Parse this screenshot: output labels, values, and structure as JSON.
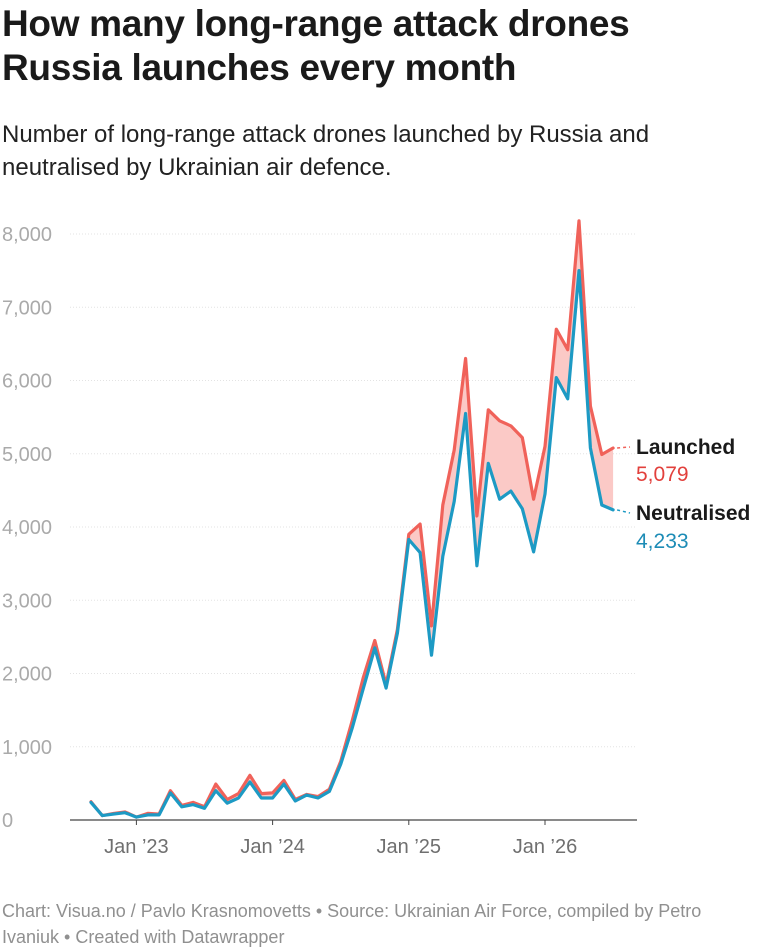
{
  "title": "How many long-range attack drones Russia launches every month",
  "subtitle": "Number of long-range attack drones launched by Russia and neutralised by Ukrainian air defence.",
  "footer": "Chart: Visua.no / Pavlo Krasnomovetts • Source: Ukrainian Air Force, compiled by Petro Ivaniuk • Created with Datawrapper",
  "colors": {
    "launched": "#f0625a",
    "neutralised": "#1d9ac4",
    "gap_fill": "#fbc9c6",
    "launched_value": "#e2403c",
    "neutralised_value": "#1d8cb6"
  },
  "chart_data": {
    "type": "area",
    "x_start": "2022-09",
    "x_tick_labels": [
      "Jan ’23",
      "Jan ’24",
      "Jan ’25",
      "Jan ’26"
    ],
    "x_tick_dates": [
      "2023-01",
      "2024-01",
      "2025-01",
      "2026-01"
    ],
    "ylim": [
      0,
      8000
    ],
    "y_ticks": [
      0,
      1000,
      2000,
      3000,
      4000,
      5000,
      6000,
      7000,
      8000
    ],
    "y_tick_labels": [
      "0",
      "1,000",
      "2,000",
      "3,000",
      "4,000",
      "5,000",
      "6,000",
      "7,000",
      "8,000"
    ],
    "grid": true,
    "series": [
      {
        "name": "Launched",
        "end_label": "5,079",
        "values": [
          250,
          60,
          90,
          110,
          40,
          90,
          80,
          400,
          200,
          240,
          180,
          490,
          280,
          360,
          610,
          360,
          370,
          540,
          280,
          350,
          320,
          420,
          800,
          1350,
          1950,
          2450,
          1850,
          2600,
          3900,
          4040,
          2650,
          4300,
          5050,
          6300,
          4150,
          5600,
          5450,
          5380,
          5220,
          4380,
          5100,
          6700,
          6420,
          8180,
          5650,
          4990,
          5079
        ]
      },
      {
        "name": "Neutralised",
        "end_label": "4,233",
        "values": [
          240,
          60,
          80,
          100,
          40,
          70,
          70,
          370,
          180,
          210,
          160,
          400,
          230,
          300,
          520,
          300,
          300,
          490,
          260,
          340,
          300,
          390,
          760,
          1250,
          1800,
          2350,
          1800,
          2550,
          3830,
          3650,
          2250,
          3600,
          4350,
          5550,
          3470,
          4870,
          4380,
          4490,
          4250,
          3660,
          4450,
          6040,
          5750,
          7500,
          5080,
          4300,
          4233
        ]
      }
    ]
  }
}
